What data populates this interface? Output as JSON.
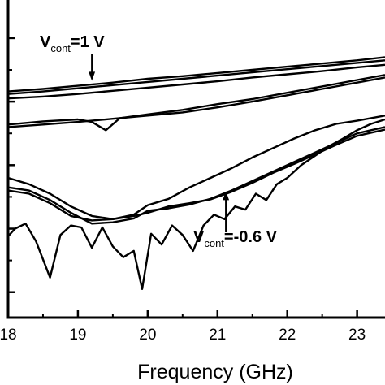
{
  "chart_data": {
    "type": "line",
    "title": "",
    "xlabel": "Frequency (GHz)",
    "ylabel": "",
    "xlim": [
      18,
      23.4
    ],
    "ylim": [
      0,
      5
    ],
    "x_ticks": [
      "18",
      "19",
      "20",
      "21",
      "22",
      "23"
    ],
    "y_tick_values": [
      0.4,
      1.4,
      2.4,
      3.4,
      4.4
    ],
    "grid": false,
    "annotations": [
      {
        "main": "V",
        "sub": "cont",
        "rest": "=1 V",
        "x": 19.2,
        "y": 3.73
      },
      {
        "main": "V",
        "sub": "cont",
        "rest": "=-0.6 V",
        "x": 21.12,
        "y": 1.99
      }
    ],
    "series": [
      {
        "x": [
          18,
          18.5,
          19,
          19.5,
          20,
          20.5,
          21,
          21.5,
          22,
          22.5,
          23,
          23.4
        ],
        "values": [
          3.56,
          3.6,
          3.65,
          3.7,
          3.76,
          3.8,
          3.85,
          3.9,
          3.95,
          4.0,
          4.05,
          4.1
        ]
      },
      {
        "x": [
          18,
          18.5,
          19,
          19.5,
          20,
          20.5,
          21,
          21.5,
          22,
          22.5,
          23,
          23.4
        ],
        "values": [
          3.52,
          3.56,
          3.61,
          3.66,
          3.71,
          3.76,
          3.81,
          3.86,
          3.91,
          3.96,
          4.01,
          4.05
        ]
      },
      {
        "x": [
          18,
          18.5,
          19,
          19.5,
          20,
          20.5,
          21,
          21.5,
          22,
          22.5,
          23,
          23.4
        ],
        "values": [
          3.45,
          3.48,
          3.52,
          3.57,
          3.62,
          3.67,
          3.72,
          3.78,
          3.83,
          3.88,
          3.94,
          3.98
        ]
      },
      {
        "x": [
          18,
          18.5,
          19,
          19.2,
          19.4,
          19.6,
          20,
          20.5,
          21,
          21.5,
          22,
          22.5,
          23,
          23.4
        ],
        "values": [
          3.04,
          3.09,
          3.12,
          3.08,
          2.95,
          3.14,
          3.2,
          3.27,
          3.36,
          3.44,
          3.54,
          3.64,
          3.74,
          3.82
        ]
      },
      {
        "x": [
          18,
          18.5,
          19,
          19.5,
          20,
          20.5,
          21,
          21.5,
          22,
          22.5,
          23,
          23.4
        ],
        "values": [
          3.0,
          3.04,
          3.08,
          3.13,
          3.18,
          3.23,
          3.31,
          3.4,
          3.5,
          3.6,
          3.7,
          3.78
        ]
      },
      {
        "x": [
          18,
          18.3,
          18.6,
          18.9,
          19.2,
          19.5,
          19.8,
          20,
          20.3,
          20.6,
          20.9,
          21.2,
          21.5,
          21.8,
          22.1,
          22.4,
          22.7,
          23,
          23.4
        ],
        "values": [
          2.2,
          2.1,
          1.95,
          1.75,
          1.6,
          1.55,
          1.62,
          1.77,
          1.87,
          2.05,
          2.2,
          2.35,
          2.52,
          2.67,
          2.82,
          2.95,
          3.05,
          3.1,
          3.18
        ]
      },
      {
        "x": [
          18,
          18.3,
          18.6,
          18.9,
          19.2,
          19.5,
          19.8,
          20,
          20.3,
          20.6,
          20.9,
          21.2,
          21.5,
          21.8,
          22.1,
          22.4,
          22.7,
          23,
          23.4
        ],
        "values": [
          2.05,
          2.0,
          1.85,
          1.65,
          1.48,
          1.5,
          1.56,
          1.68,
          1.72,
          1.78,
          1.87,
          2.0,
          2.15,
          2.3,
          2.45,
          2.6,
          2.75,
          2.9,
          3.0
        ]
      },
      {
        "x": [
          18,
          18.3,
          18.6,
          18.9,
          19.2,
          19.5,
          19.8,
          20,
          20.3,
          20.6,
          20.9,
          21.2,
          21.5,
          21.8,
          22.1,
          22.4,
          22.7,
          23,
          23.4
        ],
        "values": [
          2.0,
          1.95,
          1.8,
          1.6,
          1.53,
          1.55,
          1.6,
          1.65,
          1.75,
          1.8,
          1.86,
          1.98,
          2.12,
          2.28,
          2.42,
          2.57,
          2.72,
          2.86,
          2.96
        ]
      },
      {
        "x": [
          18,
          18.1,
          18.25,
          18.4,
          18.6,
          18.75,
          18.9,
          19.05,
          19.2,
          19.35,
          19.5,
          19.65,
          19.8,
          19.92,
          20.05,
          20.2,
          20.35,
          20.5,
          20.65,
          20.8,
          20.95,
          21.1,
          21.25,
          21.4,
          21.55,
          21.7,
          21.85,
          22,
          22.2,
          22.4,
          22.6,
          22.8,
          23,
          23.2,
          23.4
        ],
        "values": [
          1.28,
          1.4,
          1.48,
          1.2,
          0.63,
          1.3,
          1.45,
          1.42,
          1.1,
          1.42,
          1.12,
          0.95,
          1.05,
          0.45,
          1.32,
          1.15,
          1.45,
          1.3,
          1.05,
          1.45,
          1.62,
          1.55,
          1.75,
          1.7,
          1.95,
          1.85,
          2.1,
          2.2,
          2.4,
          2.55,
          2.7,
          2.82,
          2.95,
          3.05,
          3.12
        ]
      }
    ]
  }
}
